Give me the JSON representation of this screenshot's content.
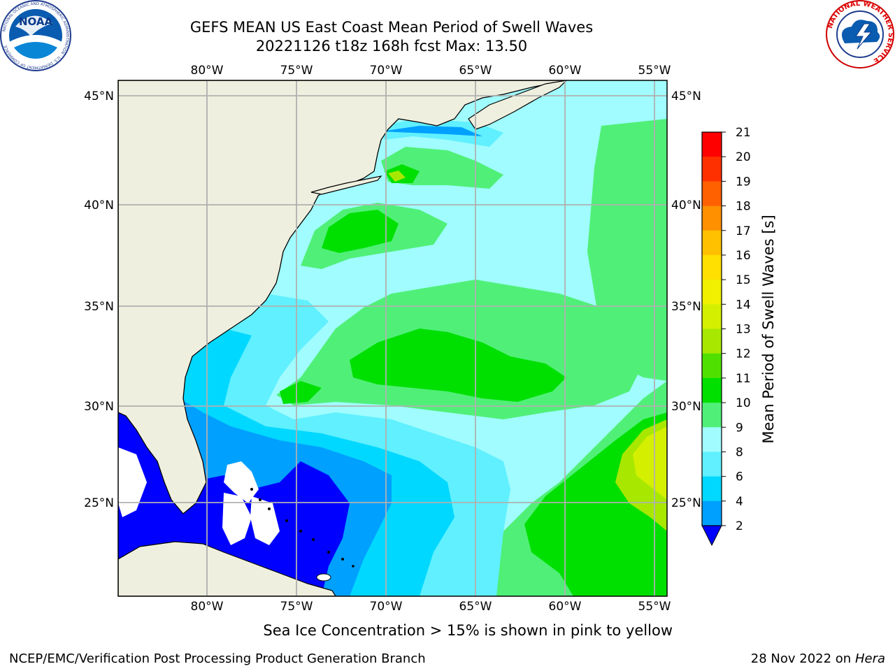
{
  "header": {
    "title_line1": "GEFS MEAN US East Coast Mean Period of Swell Waves",
    "title_line2": "20221126 t18z 168h fcst   Max: 13.50"
  },
  "logos": {
    "noaa_text": "NOAA",
    "noaa_ring": "NATIONAL OCEANIC AND ATMOSPHERIC ADMINISTRATION · U.S. DEPARTMENT OF COMMERCE",
    "nws_ring": "NATIONAL WEATHER SERVICE"
  },
  "map": {
    "lon_labels": [
      "80°W",
      "75°W",
      "70°W",
      "65°W",
      "60°W",
      "55°W"
    ],
    "lat_labels": [
      "45°N",
      "40°N",
      "35°N",
      "30°N",
      "25°N"
    ]
  },
  "colorbar": {
    "label": "Mean Period of Swell Waves [s]",
    "ticks": [
      "21",
      "20",
      "19",
      "18",
      "17",
      "16",
      "15",
      "14",
      "13",
      "12",
      "11",
      "10",
      "9",
      "8",
      "6",
      "4",
      "2"
    ],
    "colors": {
      "c2_4": "#0000ff",
      "c4_6": "#00a0ff",
      "c6_7": "#00d8ff",
      "c7_8": "#60f0ff",
      "c8_9": "#a0fcff",
      "c9_10": "#50f078",
      "c10_11": "#00e000",
      "c11_12": "#50e000",
      "c12_13": "#a8e800",
      "c13_14": "#d4f000",
      "c14_15": "#f0f000",
      "c15_16": "#ffe000",
      "c16_17": "#ffc000",
      "c17_18": "#ff9000",
      "c18_19": "#ff6000",
      "c19_20": "#ff3000",
      "c20_21": "#ff0000"
    }
  },
  "notes": {
    "sea_ice": "Sea Ice Concentration > 15% is shown in pink to yellow",
    "footer_left": "NCEP/EMC/Verification Post Processing Product Generation Branch",
    "footer_date": "28 Nov 2022 on",
    "footer_machine": "Hera"
  }
}
